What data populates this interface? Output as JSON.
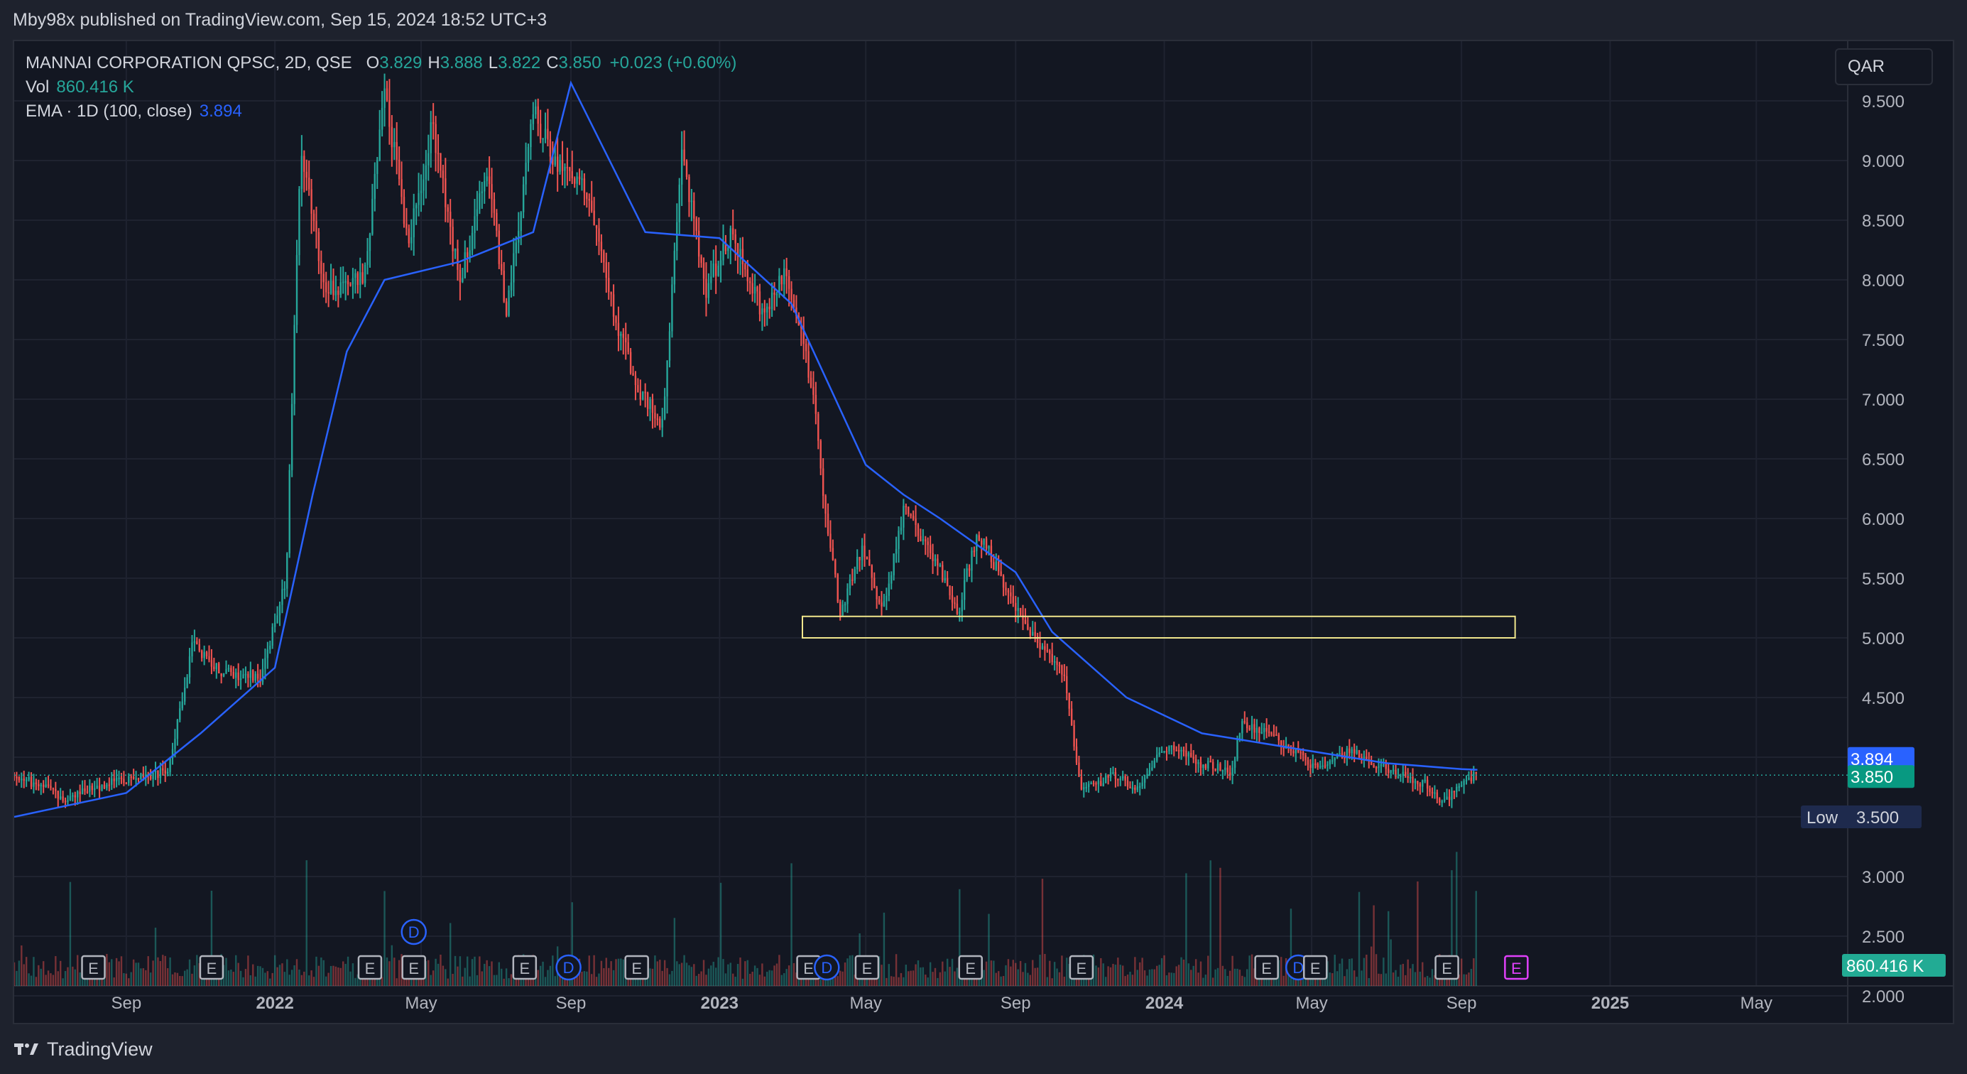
{
  "publication": "Mby98x published on TradingView.com, Sep 15, 2024 18:52 UTC+3",
  "legend": {
    "symbol": "MANNAI CORPORATION QPSC, 2D, QSE",
    "o_key": "O",
    "o_val": "3.829",
    "h_key": "H",
    "h_val": "3.888",
    "l_key": "L",
    "l_val": "3.822",
    "c_key": "C",
    "c_val": "3.850",
    "change": "+0.023 (+0.60%)",
    "vol_label": "Vol",
    "vol_value": "860.416 K",
    "ema_label": "EMA · 1D (100, close)",
    "ema_value": "3.894"
  },
  "currency": "QAR",
  "footer": {
    "brand": "TradingView"
  },
  "colors": {
    "up": "#26a69a",
    "down": "#ef5350",
    "ema": "#2962ff",
    "zone": "#f0e68c",
    "background": "#131722",
    "grid": "#1f2330"
  },
  "chart_data": {
    "type": "candlestick",
    "title": "MANNAI CORPORATION QPSC, 2D, QSE",
    "x_ticks": [
      {
        "label": "Sep",
        "date": "2021-09-01",
        "bold": false
      },
      {
        "label": "2022",
        "date": "2022-01-01",
        "bold": true
      },
      {
        "label": "May",
        "date": "2022-05-01",
        "bold": false
      },
      {
        "label": "Sep",
        "date": "2022-09-01",
        "bold": false
      },
      {
        "label": "2023",
        "date": "2023-01-01",
        "bold": true
      },
      {
        "label": "May",
        "date": "2023-05-01",
        "bold": false
      },
      {
        "label": "Sep",
        "date": "2023-09-01",
        "bold": false
      },
      {
        "label": "2024",
        "date": "2024-01-01",
        "bold": true
      },
      {
        "label": "May",
        "date": "2024-05-01",
        "bold": false
      },
      {
        "label": "Sep",
        "date": "2024-09-01",
        "bold": false
      },
      {
        "label": "2025",
        "date": "2025-01-01",
        "bold": true
      },
      {
        "label": "May",
        "date": "2025-05-01",
        "bold": false
      }
    ],
    "y_ticks": [
      "9.500",
      "9.000",
      "8.500",
      "8.000",
      "7.500",
      "7.000",
      "6.500",
      "6.000",
      "5.500",
      "5.000",
      "4.500",
      "4.000",
      "3.500",
      "3.000",
      "2.500",
      "2.000"
    ],
    "x_range": [
      "2021-06-01",
      "2025-07-15"
    ],
    "y_range": [
      2.0,
      10.0
    ],
    "price_anchors": [
      [
        "2021-06-01",
        3.85
      ],
      [
        "2021-07-15",
        3.65
      ],
      [
        "2021-08-20",
        3.8
      ],
      [
        "2021-10-05",
        3.88
      ],
      [
        "2021-10-25",
        4.95
      ],
      [
        "2021-11-20",
        4.7
      ],
      [
        "2021-12-20",
        4.68
      ],
      [
        "2022-01-10",
        5.5
      ],
      [
        "2022-01-22",
        9.2
      ],
      [
        "2022-02-10",
        7.9
      ],
      [
        "2022-03-15",
        8.0
      ],
      [
        "2022-04-01",
        9.6
      ],
      [
        "2022-04-20",
        8.3
      ],
      [
        "2022-05-10",
        9.3
      ],
      [
        "2022-06-01",
        8.0
      ],
      [
        "2022-06-25",
        8.9
      ],
      [
        "2022-07-10",
        7.7
      ],
      [
        "2022-08-01",
        9.4
      ],
      [
        "2022-08-25",
        8.9
      ],
      [
        "2022-09-15",
        8.7
      ],
      [
        "2022-10-01",
        7.9
      ],
      [
        "2022-10-25",
        7.1
      ],
      [
        "2022-11-15",
        6.8
      ],
      [
        "2022-12-01",
        9.1
      ],
      [
        "2022-12-20",
        7.9
      ],
      [
        "2023-01-10",
        8.4
      ],
      [
        "2023-02-05",
        7.7
      ],
      [
        "2023-02-25",
        8.1
      ],
      [
        "2023-03-20",
        7.0
      ],
      [
        "2023-03-27",
        6.1
      ],
      [
        "2023-04-10",
        5.2
      ],
      [
        "2023-04-28",
        5.75
      ],
      [
        "2023-05-15",
        5.2
      ],
      [
        "2023-06-01",
        6.1
      ],
      [
        "2023-06-25",
        5.7
      ],
      [
        "2023-07-15",
        5.2
      ],
      [
        "2023-08-01",
        5.9
      ],
      [
        "2023-08-25",
        5.4
      ],
      [
        "2023-09-15",
        5.0
      ],
      [
        "2023-10-10",
        4.7
      ],
      [
        "2023-10-25",
        3.7
      ],
      [
        "2023-11-20",
        3.85
      ],
      [
        "2023-12-10",
        3.75
      ],
      [
        "2024-01-01",
        4.1
      ],
      [
        "2024-01-30",
        3.95
      ],
      [
        "2024-02-25",
        3.88
      ],
      [
        "2024-03-05",
        4.3
      ],
      [
        "2024-04-10",
        4.1
      ],
      [
        "2024-05-05",
        3.9
      ],
      [
        "2024-06-01",
        4.05
      ],
      [
        "2024-07-01",
        3.9
      ],
      [
        "2024-08-01",
        3.78
      ],
      [
        "2024-08-15",
        3.6
      ],
      [
        "2024-09-01",
        3.8
      ],
      [
        "2024-09-14",
        3.85
      ]
    ],
    "ema_anchors": [
      [
        "2021-06-01",
        3.5
      ],
      [
        "2021-09-01",
        3.7
      ],
      [
        "2021-11-01",
        4.2
      ],
      [
        "2022-01-01",
        4.75
      ],
      [
        "2022-02-01",
        6.2
      ],
      [
        "2022-03-01",
        7.4
      ],
      [
        "2022-04-01",
        8.0
      ],
      [
        "2022-06-01",
        8.15
      ],
      [
        "2022-08-01",
        8.4
      ],
      [
        "2022-09-01",
        9.65
      ],
      [
        "2022-11-01",
        8.4
      ],
      [
        "2023-01-01",
        8.35
      ],
      [
        "2023-03-01",
        7.8
      ],
      [
        "2023-05-01",
        6.45
      ],
      [
        "2023-06-01",
        6.2
      ],
      [
        "2023-07-01",
        6.0
      ],
      [
        "2023-09-01",
        5.55
      ],
      [
        "2023-10-01",
        5.05
      ],
      [
        "2023-12-01",
        4.5
      ],
      [
        "2024-02-01",
        4.2
      ],
      [
        "2024-05-01",
        4.05
      ],
      [
        "2024-07-01",
        3.95
      ],
      [
        "2024-09-01",
        3.9
      ],
      [
        "2024-09-14",
        3.894
      ]
    ],
    "zone": {
      "x0": "2023-03-10",
      "x1": "2024-10-15",
      "y0": 5.0,
      "y1": 5.18
    },
    "last_close": 3.85,
    "ema_last": 3.894,
    "low_price": 3.5,
    "volume_last": "860.416 K",
    "price_labels": {
      "ema": "3.894",
      "close": "3.850",
      "low_key": "Low",
      "low_val": "3.500",
      "volume": "860.416 K"
    },
    "events": [
      {
        "type": "E",
        "date": "2021-08-05",
        "row": 1
      },
      {
        "type": "E",
        "date": "2021-11-10",
        "row": 1
      },
      {
        "type": "E",
        "date": "2022-03-20",
        "row": 1
      },
      {
        "type": "D",
        "date": "2022-04-25",
        "row": 0
      },
      {
        "type": "E",
        "date": "2022-04-25",
        "row": 1
      },
      {
        "type": "E",
        "date": "2022-07-25",
        "row": 1
      },
      {
        "type": "D",
        "date": "2022-08-30",
        "row": 1
      },
      {
        "type": "E",
        "date": "2022-10-25",
        "row": 1
      },
      {
        "type": "E",
        "date": "2023-03-15",
        "row": 1
      },
      {
        "type": "D",
        "date": "2023-03-30",
        "row": 1
      },
      {
        "type": "E",
        "date": "2023-05-02",
        "row": 1
      },
      {
        "type": "E",
        "date": "2023-07-26",
        "row": 1
      },
      {
        "type": "E",
        "date": "2023-10-25",
        "row": 1
      },
      {
        "type": "E",
        "date": "2024-03-25",
        "row": 1
      },
      {
        "type": "D",
        "date": "2024-04-20",
        "row": 1
      },
      {
        "type": "E",
        "date": "2024-05-04",
        "row": 1
      },
      {
        "type": "E",
        "date": "2024-08-20",
        "row": 1
      },
      {
        "type": "E",
        "date": "2024-10-16",
        "row": 1,
        "upcoming": true
      }
    ]
  }
}
